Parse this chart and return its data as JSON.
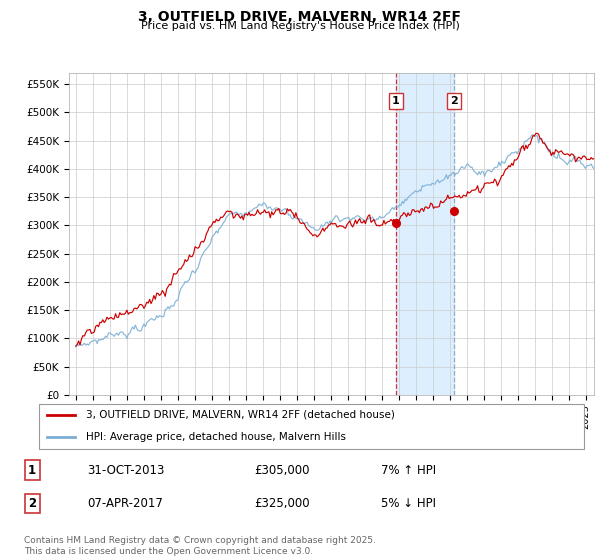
{
  "title": "3, OUTFIELD DRIVE, MALVERN, WR14 2FF",
  "subtitle": "Price paid vs. HM Land Registry's House Price Index (HPI)",
  "ylabel_ticks": [
    "£0",
    "£50K",
    "£100K",
    "£150K",
    "£200K",
    "£250K",
    "£300K",
    "£350K",
    "£400K",
    "£450K",
    "£500K",
    "£550K"
  ],
  "ytick_vals": [
    0,
    50000,
    100000,
    150000,
    200000,
    250000,
    300000,
    350000,
    400000,
    450000,
    500000,
    550000
  ],
  "ylim": [
    0,
    570000
  ],
  "xlim_start": 1994.6,
  "xlim_end": 2025.5,
  "marker1_x": 2013.83,
  "marker1_y": 305000,
  "marker1_label": "1",
  "marker1_date": "31-OCT-2013",
  "marker1_price": "£305,000",
  "marker1_hpi": "7% ↑ HPI",
  "marker2_x": 2017.27,
  "marker2_y": 325000,
  "marker2_label": "2",
  "marker2_date": "07-APR-2017",
  "marker2_price": "£325,000",
  "marker2_hpi": "5% ↓ HPI",
  "shade_x1": 2013.83,
  "shade_x2": 2017.27,
  "legend_line1": "3, OUTFIELD DRIVE, MALVERN, WR14 2FF (detached house)",
  "legend_line2": "HPI: Average price, detached house, Malvern Hills",
  "footer": "Contains HM Land Registry data © Crown copyright and database right 2025.\nThis data is licensed under the Open Government Licence v3.0.",
  "line_color_red": "#cc0000",
  "line_color_blue": "#7aaed4",
  "shade_color": "#ddeeff",
  "background_color": "#ffffff",
  "grid_color": "#cccccc"
}
